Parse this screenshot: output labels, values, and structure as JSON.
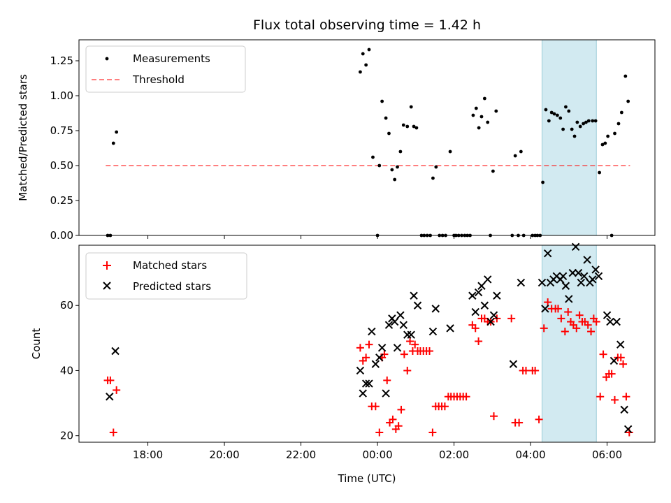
{
  "chart_data": {
    "title": "Flux total observing time = 1.42 h",
    "xlabel": "Time (UTC)",
    "x_range_hours": [
      -7.8,
      7.25
    ],
    "x_ticks": [
      {
        "hour": -6,
        "label": "18:00"
      },
      {
        "hour": -4,
        "label": "20:00"
      },
      {
        "hour": -2,
        "label": "22:00"
      },
      {
        "hour": 0,
        "label": "00:00"
      },
      {
        "hour": 2,
        "label": "02:00"
      },
      {
        "hour": 4,
        "label": "04:00"
      },
      {
        "hour": 6,
        "label": "06:00"
      }
    ],
    "shaded_span": {
      "x0": 4.3,
      "x1": 5.72,
      "color": "#add8e6"
    },
    "top": {
      "type": "scatter",
      "ylabel": "Matched/Predicted stars",
      "ylim": [
        0,
        1.4
      ],
      "y_ticks": [
        "0.00",
        "0.25",
        "0.50",
        "0.75",
        "1.00",
        "1.25"
      ],
      "legend": [
        "Measurements",
        "Threshold"
      ],
      "threshold": {
        "name": "Threshold",
        "y": 0.5,
        "x0": -7.1,
        "x1": 6.6,
        "color": "#ff0000"
      },
      "points": [
        [
          -7.05,
          0
        ],
        [
          -6.98,
          0
        ],
        [
          -6.9,
          0.66
        ],
        [
          -6.82,
          0.74
        ],
        [
          -0.45,
          1.17
        ],
        [
          -0.38,
          1.3
        ],
        [
          -0.3,
          1.22
        ],
        [
          -0.22,
          1.33
        ],
        [
          -0.12,
          0.56
        ],
        [
          0,
          0
        ],
        [
          0.05,
          0.5
        ],
        [
          0.12,
          0.96
        ],
        [
          0.22,
          0.84
        ],
        [
          0.3,
          0.73
        ],
        [
          0.38,
          0.47
        ],
        [
          0.45,
          0.4
        ],
        [
          0.52,
          0.49
        ],
        [
          0.6,
          0.6
        ],
        [
          0.68,
          0.79
        ],
        [
          0.78,
          0.78
        ],
        [
          0.88,
          0.92
        ],
        [
          0.95,
          0.78
        ],
        [
          1.02,
          0.77
        ],
        [
          1.15,
          0
        ],
        [
          1.22,
          0
        ],
        [
          1.3,
          0
        ],
        [
          1.38,
          0
        ],
        [
          1.45,
          0.41
        ],
        [
          1.53,
          0.49
        ],
        [
          1.62,
          0
        ],
        [
          1.7,
          0
        ],
        [
          1.78,
          0
        ],
        [
          1.9,
          0.6
        ],
        [
          2.0,
          0
        ],
        [
          2.05,
          0
        ],
        [
          2.12,
          0
        ],
        [
          2.2,
          0
        ],
        [
          2.28,
          0
        ],
        [
          2.35,
          0
        ],
        [
          2.42,
          0
        ],
        [
          2.5,
          0.86
        ],
        [
          2.58,
          0.91
        ],
        [
          2.65,
          0.77
        ],
        [
          2.72,
          0.85
        ],
        [
          2.8,
          0.98
        ],
        [
          2.88,
          0.81
        ],
        [
          2.95,
          0
        ],
        [
          3.02,
          0.46
        ],
        [
          3.1,
          0.89
        ],
        [
          3.52,
          0
        ],
        [
          3.6,
          0.57
        ],
        [
          3.68,
          0
        ],
        [
          3.75,
          0.6
        ],
        [
          3.82,
          0
        ],
        [
          4.05,
          0
        ],
        [
          4.12,
          0
        ],
        [
          4.18,
          0
        ],
        [
          4.25,
          0
        ],
        [
          4.32,
          0.38
        ],
        [
          4.4,
          0.9
        ],
        [
          4.48,
          0.82
        ],
        [
          4.55,
          0.88
        ],
        [
          4.62,
          0.87
        ],
        [
          4.7,
          0.86
        ],
        [
          4.78,
          0.84
        ],
        [
          4.85,
          0.76
        ],
        [
          4.92,
          0.92
        ],
        [
          5.0,
          0.89
        ],
        [
          5.08,
          0.76
        ],
        [
          5.15,
          0.71
        ],
        [
          5.22,
          0.81
        ],
        [
          5.3,
          0.78
        ],
        [
          5.38,
          0.8
        ],
        [
          5.45,
          0.81
        ],
        [
          5.52,
          0.82
        ],
        [
          5.62,
          0.82
        ],
        [
          5.7,
          0.82
        ],
        [
          5.8,
          0.45
        ],
        [
          5.88,
          0.65
        ],
        [
          5.95,
          0.66
        ],
        [
          6.02,
          0.71
        ],
        [
          6.12,
          0
        ],
        [
          6.2,
          0.73
        ],
        [
          6.3,
          0.8
        ],
        [
          6.38,
          0.88
        ],
        [
          6.48,
          1.14
        ],
        [
          6.55,
          0.96
        ]
      ]
    },
    "bottom": {
      "type": "scatter",
      "ylabel": "Count",
      "ylim": [
        18,
        78.5
      ],
      "y_ticks": [
        "20",
        "40",
        "60"
      ],
      "legend": [
        "Matched stars",
        "Predicted stars"
      ],
      "matched": [
        [
          -7.05,
          37
        ],
        [
          -6.98,
          37
        ],
        [
          -6.9,
          21
        ],
        [
          -6.82,
          34
        ],
        [
          -0.45,
          47
        ],
        [
          -0.38,
          43
        ],
        [
          -0.3,
          44
        ],
        [
          -0.22,
          48
        ],
        [
          -0.15,
          29
        ],
        [
          -0.05,
          29
        ],
        [
          0.05,
          21
        ],
        [
          0.12,
          44
        ],
        [
          0.18,
          45
        ],
        [
          0.25,
          37
        ],
        [
          0.32,
          24
        ],
        [
          0.4,
          25
        ],
        [
          0.48,
          22
        ],
        [
          0.55,
          23
        ],
        [
          0.62,
          28
        ],
        [
          0.7,
          45
        ],
        [
          0.78,
          40
        ],
        [
          0.85,
          49
        ],
        [
          0.92,
          46
        ],
        [
          0.98,
          48
        ],
        [
          1.05,
          46
        ],
        [
          1.12,
          46
        ],
        [
          1.2,
          46
        ],
        [
          1.28,
          46
        ],
        [
          1.36,
          46
        ],
        [
          1.44,
          21
        ],
        [
          1.52,
          29
        ],
        [
          1.6,
          29
        ],
        [
          1.68,
          29
        ],
        [
          1.76,
          29
        ],
        [
          1.85,
          32
        ],
        [
          1.92,
          32
        ],
        [
          2.0,
          32
        ],
        [
          2.08,
          32
        ],
        [
          2.16,
          32
        ],
        [
          2.24,
          32
        ],
        [
          2.32,
          32
        ],
        [
          2.48,
          54
        ],
        [
          2.56,
          53
        ],
        [
          2.64,
          49
        ],
        [
          2.72,
          56
        ],
        [
          2.8,
          56
        ],
        [
          2.88,
          55
        ],
        [
          2.96,
          55
        ],
        [
          3.04,
          26
        ],
        [
          3.12,
          56
        ],
        [
          3.5,
          56
        ],
        [
          3.6,
          24
        ],
        [
          3.7,
          24
        ],
        [
          3.8,
          40
        ],
        [
          3.88,
          40
        ],
        [
          4.05,
          40
        ],
        [
          4.12,
          40
        ],
        [
          4.22,
          25
        ],
        [
          4.35,
          53
        ],
        [
          4.45,
          61
        ],
        [
          4.55,
          59
        ],
        [
          4.65,
          59
        ],
        [
          4.72,
          59
        ],
        [
          4.8,
          56
        ],
        [
          4.9,
          52
        ],
        [
          4.98,
          58
        ],
        [
          5.05,
          55
        ],
        [
          5.12,
          54
        ],
        [
          5.2,
          53
        ],
        [
          5.28,
          57
        ],
        [
          5.35,
          55
        ],
        [
          5.42,
          55
        ],
        [
          5.5,
          54
        ],
        [
          5.58,
          52
        ],
        [
          5.65,
          56
        ],
        [
          5.72,
          55
        ],
        [
          5.82,
          32
        ],
        [
          5.9,
          45
        ],
        [
          5.98,
          38
        ],
        [
          6.05,
          39
        ],
        [
          6.12,
          39
        ],
        [
          6.2,
          31
        ],
        [
          6.28,
          44
        ],
        [
          6.36,
          44
        ],
        [
          6.42,
          42
        ],
        [
          6.5,
          32
        ],
        [
          6.58,
          21
        ]
      ],
      "predicted": [
        [
          -7.0,
          32
        ],
        [
          -6.85,
          46
        ],
        [
          -0.45,
          40
        ],
        [
          -0.38,
          33
        ],
        [
          -0.3,
          36
        ],
        [
          -0.22,
          36
        ],
        [
          -0.15,
          52
        ],
        [
          -0.05,
          42
        ],
        [
          0.05,
          44
        ],
        [
          0.12,
          47
        ],
        [
          0.22,
          33
        ],
        [
          0.3,
          54
        ],
        [
          0.38,
          56
        ],
        [
          0.45,
          55
        ],
        [
          0.52,
          47
        ],
        [
          0.6,
          57
        ],
        [
          0.68,
          54
        ],
        [
          0.78,
          51
        ],
        [
          0.88,
          51
        ],
        [
          0.95,
          63
        ],
        [
          1.05,
          60
        ],
        [
          1.45,
          52
        ],
        [
          1.52,
          59
        ],
        [
          1.9,
          53
        ],
        [
          2.48,
          63
        ],
        [
          2.56,
          58
        ],
        [
          2.64,
          64
        ],
        [
          2.72,
          66
        ],
        [
          2.8,
          60
        ],
        [
          2.88,
          68
        ],
        [
          2.96,
          55
        ],
        [
          3.04,
          57
        ],
        [
          3.12,
          63
        ],
        [
          3.55,
          42
        ],
        [
          3.75,
          67
        ],
        [
          4.3,
          67
        ],
        [
          4.38,
          59
        ],
        [
          4.45,
          76
        ],
        [
          4.52,
          67
        ],
        [
          4.6,
          68
        ],
        [
          4.68,
          69
        ],
        [
          4.78,
          68
        ],
        [
          4.85,
          69
        ],
        [
          4.92,
          66
        ],
        [
          5.0,
          62
        ],
        [
          5.1,
          70
        ],
        [
          5.18,
          78
        ],
        [
          5.25,
          70
        ],
        [
          5.32,
          67
        ],
        [
          5.4,
          69
        ],
        [
          5.48,
          74
        ],
        [
          5.55,
          67
        ],
        [
          5.62,
          68
        ],
        [
          5.7,
          71
        ],
        [
          5.78,
          69
        ],
        [
          6.0,
          57
        ],
        [
          6.08,
          55
        ],
        [
          6.18,
          43
        ],
        [
          6.25,
          55
        ],
        [
          6.35,
          48
        ],
        [
          6.45,
          28
        ],
        [
          6.55,
          22
        ]
      ]
    }
  }
}
